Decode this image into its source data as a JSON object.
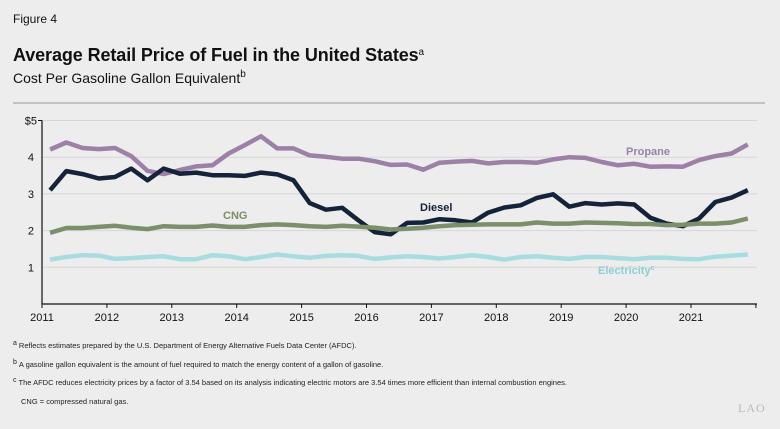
{
  "figure_label": "Figure 4",
  "title": "Average Retail Price of Fuel in the United States",
  "title_sup": "a",
  "subtitle": "Cost Per Gasoline Gallon Equivalent",
  "subtitle_sup": "b",
  "chart_data": {
    "type": "line",
    "title": "Average Retail Price of Fuel in the United States",
    "subtitle": "Cost Per Gasoline Gallon Equivalent",
    "x_ticks": [
      "2011",
      "2012",
      "2013",
      "2014",
      "2015",
      "2016",
      "2017",
      "2018",
      "2019",
      "2020",
      "2021"
    ],
    "y_ticks": [
      "$5",
      "4",
      "3",
      "2",
      "1"
    ],
    "ylim": [
      0,
      5
    ],
    "xlim": [
      2011,
      2022
    ],
    "grid": "horizontal",
    "x_frequency": "quarterly, 2011 Q1 to 2021 Q4",
    "series": [
      {
        "name": "Propane",
        "label": "Propane",
        "label_sup": "",
        "color": "#9c80a8",
        "values": [
          4.21,
          4.4,
          4.25,
          4.22,
          4.25,
          4.03,
          3.63,
          3.54,
          3.65,
          3.75,
          3.78,
          4.1,
          4.33,
          4.57,
          4.24,
          4.24,
          4.05,
          4.01,
          3.96,
          3.96,
          3.89,
          3.79,
          3.8,
          3.66,
          3.85,
          3.88,
          3.9,
          3.83,
          3.87,
          3.87,
          3.85,
          3.94,
          4.0,
          3.98,
          3.87,
          3.78,
          3.82,
          3.74,
          3.75,
          3.74,
          3.92,
          4.03,
          4.1,
          4.35
        ]
      },
      {
        "name": "Diesel",
        "label": "Diesel",
        "label_sup": "",
        "color": "#14233a",
        "values": [
          3.1,
          3.62,
          3.54,
          3.42,
          3.46,
          3.69,
          3.37,
          3.69,
          3.55,
          3.58,
          3.51,
          3.51,
          3.49,
          3.58,
          3.53,
          3.37,
          2.75,
          2.57,
          2.62,
          2.28,
          1.96,
          1.9,
          2.21,
          2.22,
          2.31,
          2.28,
          2.22,
          2.49,
          2.63,
          2.69,
          2.89,
          2.99,
          2.65,
          2.75,
          2.71,
          2.74,
          2.71,
          2.35,
          2.19,
          2.12,
          2.33,
          2.78,
          2.9,
          3.1
        ]
      },
      {
        "name": "CNG",
        "label": "CNG",
        "label_sup": "",
        "color": "#7b8f6b",
        "values": [
          1.94,
          2.07,
          2.07,
          2.1,
          2.13,
          2.08,
          2.04,
          2.12,
          2.1,
          2.1,
          2.14,
          2.1,
          2.1,
          2.15,
          2.17,
          2.15,
          2.12,
          2.1,
          2.13,
          2.11,
          2.08,
          2.03,
          2.05,
          2.08,
          2.12,
          2.15,
          2.16,
          2.17,
          2.17,
          2.17,
          2.22,
          2.19,
          2.19,
          2.22,
          2.21,
          2.2,
          2.18,
          2.18,
          2.15,
          2.16,
          2.19,
          2.19,
          2.22,
          2.33
        ]
      },
      {
        "name": "Electricity",
        "label": "Electricity",
        "label_sup": "c",
        "color": "#a7dde1",
        "values": [
          1.21,
          1.28,
          1.33,
          1.32,
          1.23,
          1.25,
          1.28,
          1.3,
          1.22,
          1.22,
          1.33,
          1.3,
          1.22,
          1.28,
          1.35,
          1.3,
          1.26,
          1.31,
          1.33,
          1.31,
          1.23,
          1.27,
          1.3,
          1.28,
          1.24,
          1.28,
          1.33,
          1.28,
          1.21,
          1.28,
          1.3,
          1.26,
          1.23,
          1.28,
          1.28,
          1.25,
          1.22,
          1.26,
          1.26,
          1.23,
          1.22,
          1.29,
          1.32,
          1.35
        ]
      }
    ]
  },
  "notes": [
    {
      "sup": "a",
      "text": "Reflects estimates prepared by the U.S. Department of Energy Alternative Fuels Data Center (AFDC)."
    },
    {
      "sup": "b",
      "text": "A gasoline gallon equivalent is the amount of fuel required to match the energy content of a gallon of gasoline."
    },
    {
      "sup": "c",
      "text": "The AFDC reduces electricity prices by a factor of 3.54 based on its analysis indicating electric motors are 3.54 times more efficient than internal combustion engines."
    },
    {
      "sup": "",
      "text": "CNG = compressed natural gas."
    }
  ],
  "logo": "LAO"
}
